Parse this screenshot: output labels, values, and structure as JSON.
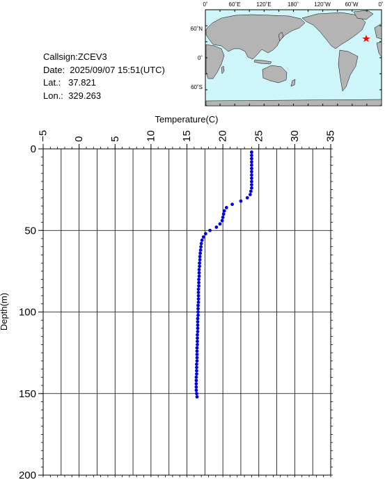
{
  "info": {
    "callsign": "Callsign:ZCEV3",
    "date": "Date:  2025/09/07 15:51(UTC)",
    "lat": "Lat.:   37.821",
    "lon": "Lon.:  329.263"
  },
  "map": {
    "top_labels": [
      "0˚",
      "60˚E",
      "120˚E",
      "180˚",
      "120˚W",
      "60˚W",
      "0˚"
    ],
    "side_labels": [
      "60˚N",
      "0˚",
      "60˚S"
    ],
    "ocean_color": "#cdf5fa",
    "land_color": "#b4b4b4",
    "marker_color": "#ff0000",
    "marker_icon": "star-icon"
  },
  "chart_data": {
    "type": "scatter",
    "xlabel": "Temperature(C)",
    "ylabel": "Depth(m)",
    "xlim": [
      -5,
      35
    ],
    "ylim": [
      0,
      200
    ],
    "y_inverted": true,
    "x_axis_position": "top",
    "grid": true,
    "x_ticks": [
      -5,
      0,
      5,
      10,
      15,
      20,
      25,
      30,
      35
    ],
    "y_ticks": [
      0,
      50,
      100,
      150,
      200
    ],
    "x_tick_labels": [
      "−5",
      "0",
      "5",
      "10",
      "15",
      "20",
      "25",
      "30",
      "35"
    ],
    "y_tick_labels": [
      "0",
      "50",
      "100",
      "150",
      "200"
    ],
    "marker_color": "#0000e6",
    "points": [
      {
        "t": 24.0,
        "d": 2
      },
      {
        "t": 24.0,
        "d": 4
      },
      {
        "t": 24.0,
        "d": 6
      },
      {
        "t": 24.0,
        "d": 8
      },
      {
        "t": 24.0,
        "d": 10
      },
      {
        "t": 24.0,
        "d": 12
      },
      {
        "t": 24.0,
        "d": 14
      },
      {
        "t": 24.0,
        "d": 16
      },
      {
        "t": 24.0,
        "d": 18
      },
      {
        "t": 24.0,
        "d": 20
      },
      {
        "t": 24.0,
        "d": 22
      },
      {
        "t": 24.0,
        "d": 24
      },
      {
        "t": 23.9,
        "d": 26
      },
      {
        "t": 23.8,
        "d": 28
      },
      {
        "t": 23.4,
        "d": 30
      },
      {
        "t": 22.5,
        "d": 32
      },
      {
        "t": 21.3,
        "d": 34
      },
      {
        "t": 20.5,
        "d": 36
      },
      {
        "t": 20.2,
        "d": 38
      },
      {
        "t": 20.1,
        "d": 40
      },
      {
        "t": 20.0,
        "d": 42
      },
      {
        "t": 19.9,
        "d": 44
      },
      {
        "t": 19.6,
        "d": 46
      },
      {
        "t": 19.1,
        "d": 48
      },
      {
        "t": 18.2,
        "d": 50
      },
      {
        "t": 17.6,
        "d": 52
      },
      {
        "t": 17.3,
        "d": 54
      },
      {
        "t": 17.1,
        "d": 56
      },
      {
        "t": 17.0,
        "d": 58
      },
      {
        "t": 16.95,
        "d": 60
      },
      {
        "t": 16.9,
        "d": 62
      },
      {
        "t": 16.85,
        "d": 64
      },
      {
        "t": 16.8,
        "d": 66
      },
      {
        "t": 16.8,
        "d": 68
      },
      {
        "t": 16.75,
        "d": 70
      },
      {
        "t": 16.75,
        "d": 72
      },
      {
        "t": 16.7,
        "d": 74
      },
      {
        "t": 16.7,
        "d": 76
      },
      {
        "t": 16.7,
        "d": 78
      },
      {
        "t": 16.65,
        "d": 80
      },
      {
        "t": 16.65,
        "d": 82
      },
      {
        "t": 16.65,
        "d": 84
      },
      {
        "t": 16.6,
        "d": 86
      },
      {
        "t": 16.6,
        "d": 88
      },
      {
        "t": 16.6,
        "d": 90
      },
      {
        "t": 16.6,
        "d": 92
      },
      {
        "t": 16.6,
        "d": 94
      },
      {
        "t": 16.55,
        "d": 96
      },
      {
        "t": 16.55,
        "d": 98
      },
      {
        "t": 16.55,
        "d": 100
      },
      {
        "t": 16.55,
        "d": 102
      },
      {
        "t": 16.5,
        "d": 104
      },
      {
        "t": 16.5,
        "d": 106
      },
      {
        "t": 16.5,
        "d": 108
      },
      {
        "t": 16.5,
        "d": 110
      },
      {
        "t": 16.5,
        "d": 112
      },
      {
        "t": 16.45,
        "d": 114
      },
      {
        "t": 16.45,
        "d": 116
      },
      {
        "t": 16.45,
        "d": 118
      },
      {
        "t": 16.45,
        "d": 120
      },
      {
        "t": 16.4,
        "d": 122
      },
      {
        "t": 16.4,
        "d": 124
      },
      {
        "t": 16.4,
        "d": 126
      },
      {
        "t": 16.4,
        "d": 128
      },
      {
        "t": 16.4,
        "d": 130
      },
      {
        "t": 16.35,
        "d": 132
      },
      {
        "t": 16.35,
        "d": 134
      },
      {
        "t": 16.35,
        "d": 136
      },
      {
        "t": 16.35,
        "d": 138
      },
      {
        "t": 16.3,
        "d": 140
      },
      {
        "t": 16.3,
        "d": 142
      },
      {
        "t": 16.3,
        "d": 144
      },
      {
        "t": 16.3,
        "d": 146
      },
      {
        "t": 16.3,
        "d": 148
      },
      {
        "t": 16.35,
        "d": 150
      },
      {
        "t": 16.4,
        "d": 152
      }
    ]
  }
}
